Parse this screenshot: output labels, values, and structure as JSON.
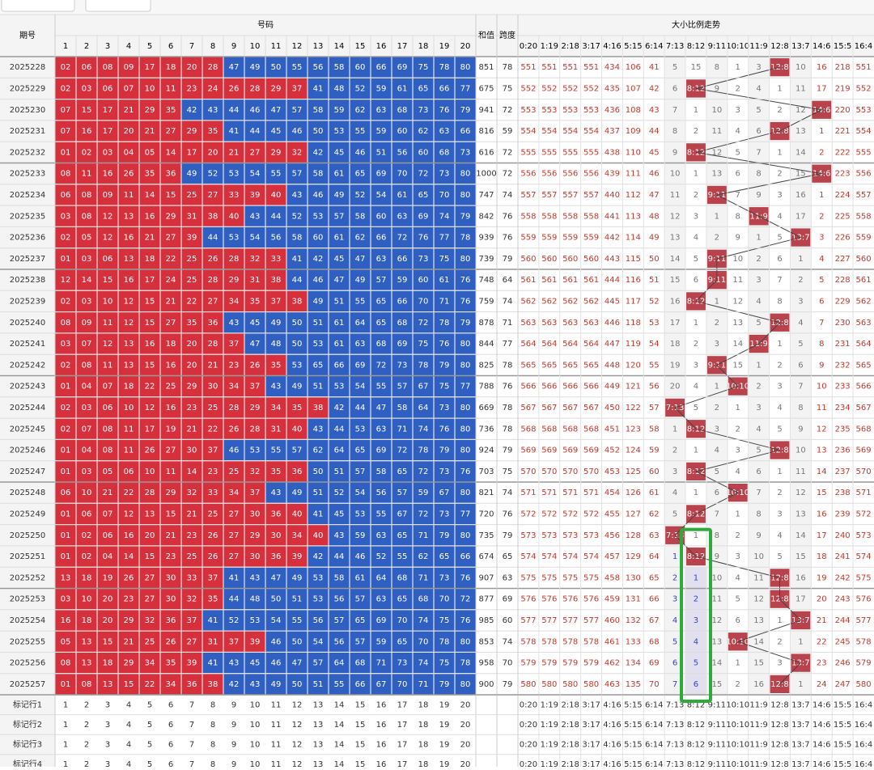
{
  "header": {
    "issue": "期号",
    "numbers_title": "号码",
    "sum": "和值",
    "span": "跨度",
    "trend_title": "大小比例走势",
    "numbers": [
      "1",
      "2",
      "3",
      "4",
      "5",
      "6",
      "7",
      "8",
      "9",
      "10",
      "11",
      "12",
      "13",
      "14",
      "15",
      "16",
      "17",
      "18",
      "19",
      "20"
    ],
    "ratios": [
      "0:20",
      "1:19",
      "2:18",
      "3:17",
      "4:16",
      "5:15",
      "6:14",
      "7:13",
      "8:12",
      "9:11",
      "10:10",
      "11:9",
      "12:8",
      "13:7",
      "14:6",
      "15:5",
      "16:4"
    ]
  },
  "rows": [
    {
      "issue": "2025228",
      "numbers": [
        "02",
        "06",
        "08",
        "09",
        "17",
        "18",
        "20",
        "28",
        "47",
        "49",
        "50",
        "55",
        "56",
        "58",
        "60",
        "66",
        "69",
        "75",
        "78",
        "80"
      ],
      "sum": 851,
      "span": 78,
      "trend": [
        551,
        551,
        551,
        551,
        434,
        106,
        41,
        5,
        15,
        8,
        1,
        3,
        "12:8",
        10,
        16,
        218,
        551
      ]
    },
    {
      "issue": "2025229",
      "numbers": [
        "02",
        "03",
        "06",
        "07",
        "10",
        "11",
        "23",
        "24",
        "26",
        "28",
        "29",
        "37",
        "41",
        "48",
        "52",
        "59",
        "61",
        "65",
        "66",
        "77"
      ],
      "sum": 675,
      "span": 75,
      "trend": [
        552,
        552,
        552,
        552,
        435,
        107,
        42,
        6,
        "8:12",
        9,
        2,
        4,
        1,
        11,
        17,
        219,
        552
      ]
    },
    {
      "issue": "2025230",
      "numbers": [
        "07",
        "15",
        "17",
        "21",
        "29",
        "35",
        "42",
        "43",
        "44",
        "46",
        "47",
        "57",
        "58",
        "59",
        "62",
        "63",
        "68",
        "73",
        "76",
        "79"
      ],
      "sum": 941,
      "span": 72,
      "trend": [
        553,
        553,
        553,
        553,
        436,
        108,
        43,
        7,
        1,
        10,
        3,
        5,
        2,
        12,
        "14:6",
        220,
        553
      ]
    },
    {
      "issue": "2025231",
      "numbers": [
        "07",
        "16",
        "17",
        "20",
        "21",
        "27",
        "29",
        "35",
        "41",
        "44",
        "45",
        "46",
        "50",
        "53",
        "55",
        "59",
        "60",
        "62",
        "63",
        "66"
      ],
      "sum": 816,
      "span": 59,
      "trend": [
        554,
        554,
        554,
        554,
        437,
        109,
        44,
        8,
        2,
        11,
        4,
        6,
        "12:8",
        13,
        1,
        221,
        554
      ]
    },
    {
      "issue": "2025232",
      "numbers": [
        "01",
        "02",
        "03",
        "04",
        "05",
        "14",
        "17",
        "20",
        "21",
        "27",
        "29",
        "32",
        "42",
        "45",
        "46",
        "51",
        "56",
        "60",
        "68",
        "73"
      ],
      "sum": 616,
      "span": 72,
      "trend": [
        555,
        555,
        555,
        555,
        438,
        110,
        45,
        9,
        "8:12",
        12,
        5,
        7,
        1,
        14,
        2,
        222,
        555
      ]
    },
    {
      "issue": "2025233",
      "numbers": [
        "08",
        "11",
        "16",
        "26",
        "35",
        "36",
        "49",
        "52",
        "53",
        "54",
        "55",
        "57",
        "58",
        "61",
        "65",
        "69",
        "70",
        "72",
        "73",
        "80"
      ],
      "sum": 1000,
      "span": 72,
      "trend": [
        556,
        556,
        556,
        556,
        439,
        111,
        46,
        10,
        1,
        13,
        6,
        8,
        2,
        15,
        "14:6",
        223,
        556
      ]
    },
    {
      "issue": "2025234",
      "numbers": [
        "06",
        "08",
        "09",
        "11",
        "14",
        "15",
        "25",
        "27",
        "33",
        "39",
        "40",
        "43",
        "46",
        "49",
        "52",
        "54",
        "61",
        "65",
        "70",
        "80"
      ],
      "sum": 747,
      "span": 74,
      "trend": [
        557,
        557,
        557,
        557,
        440,
        112,
        47,
        11,
        2,
        "9:11",
        7,
        9,
        3,
        16,
        1,
        224,
        557
      ]
    },
    {
      "issue": "2025235",
      "numbers": [
        "03",
        "08",
        "12",
        "13",
        "16",
        "29",
        "31",
        "38",
        "40",
        "43",
        "44",
        "52",
        "53",
        "57",
        "58",
        "60",
        "63",
        "69",
        "74",
        "79"
      ],
      "sum": 842,
      "span": 76,
      "trend": [
        558,
        558,
        558,
        558,
        441,
        113,
        48,
        12,
        3,
        1,
        8,
        "11:9",
        4,
        17,
        2,
        225,
        558
      ]
    },
    {
      "issue": "2025236",
      "numbers": [
        "02",
        "05",
        "12",
        "16",
        "21",
        "27",
        "39",
        "44",
        "53",
        "54",
        "56",
        "58",
        "60",
        "61",
        "62",
        "66",
        "72",
        "76",
        "77",
        "78"
      ],
      "sum": 939,
      "span": 76,
      "trend": [
        559,
        559,
        559,
        559,
        442,
        114,
        49,
        13,
        4,
        2,
        9,
        1,
        5,
        "13:7",
        3,
        226,
        559
      ]
    },
    {
      "issue": "2025237",
      "numbers": [
        "01",
        "03",
        "06",
        "13",
        "18",
        "22",
        "25",
        "26",
        "28",
        "32",
        "33",
        "41",
        "42",
        "45",
        "47",
        "63",
        "66",
        "73",
        "75",
        "80"
      ],
      "sum": 739,
      "span": 79,
      "trend": [
        560,
        560,
        560,
        560,
        443,
        115,
        50,
        14,
        5,
        "9:11",
        10,
        2,
        6,
        1,
        4,
        227,
        560
      ]
    },
    {
      "issue": "2025238",
      "numbers": [
        "12",
        "14",
        "15",
        "16",
        "17",
        "24",
        "25",
        "28",
        "29",
        "31",
        "38",
        "44",
        "46",
        "47",
        "49",
        "57",
        "59",
        "60",
        "61",
        "76"
      ],
      "sum": 748,
      "span": 64,
      "trend": [
        561,
        561,
        561,
        561,
        444,
        116,
        51,
        15,
        6,
        "9:11",
        11,
        3,
        7,
        2,
        5,
        228,
        561
      ]
    },
    {
      "issue": "2025239",
      "numbers": [
        "02",
        "03",
        "10",
        "12",
        "15",
        "21",
        "22",
        "27",
        "34",
        "35",
        "37",
        "38",
        "49",
        "51",
        "55",
        "65",
        "66",
        "70",
        "71",
        "76"
      ],
      "sum": 759,
      "span": 74,
      "trend": [
        562,
        562,
        562,
        562,
        445,
        117,
        52,
        16,
        "8:12",
        1,
        12,
        4,
        8,
        3,
        6,
        229,
        562
      ]
    },
    {
      "issue": "2025240",
      "numbers": [
        "08",
        "09",
        "11",
        "12",
        "15",
        "27",
        "35",
        "36",
        "43",
        "45",
        "49",
        "50",
        "51",
        "61",
        "64",
        "65",
        "68",
        "72",
        "78",
        "79"
      ],
      "sum": 878,
      "span": 71,
      "trend": [
        563,
        563,
        563,
        563,
        446,
        118,
        53,
        17,
        1,
        2,
        13,
        5,
        "12:8",
        4,
        7,
        230,
        563
      ]
    },
    {
      "issue": "2025241",
      "numbers": [
        "03",
        "07",
        "12",
        "13",
        "16",
        "18",
        "20",
        "28",
        "37",
        "47",
        "48",
        "50",
        "53",
        "61",
        "63",
        "68",
        "69",
        "75",
        "76",
        "80"
      ],
      "sum": 844,
      "span": 77,
      "trend": [
        564,
        564,
        564,
        564,
        447,
        119,
        54,
        18,
        2,
        3,
        14,
        "11:9",
        1,
        5,
        8,
        231,
        564
      ]
    },
    {
      "issue": "2025242",
      "numbers": [
        "02",
        "08",
        "11",
        "13",
        "15",
        "16",
        "20",
        "21",
        "23",
        "26",
        "35",
        "53",
        "65",
        "66",
        "69",
        "72",
        "73",
        "78",
        "79",
        "80"
      ],
      "sum": 825,
      "span": 78,
      "trend": [
        565,
        565,
        565,
        565,
        448,
        120,
        55,
        19,
        3,
        "9:11",
        15,
        1,
        2,
        6,
        9,
        232,
        565
      ]
    },
    {
      "issue": "2025243",
      "numbers": [
        "01",
        "04",
        "07",
        "18",
        "22",
        "25",
        "29",
        "30",
        "34",
        "37",
        "43",
        "49",
        "51",
        "53",
        "54",
        "55",
        "57",
        "67",
        "75",
        "77"
      ],
      "sum": 788,
      "span": 76,
      "trend": [
        566,
        566,
        566,
        566,
        449,
        121,
        56,
        20,
        4,
        1,
        "10:10",
        2,
        3,
        7,
        10,
        233,
        566
      ]
    },
    {
      "issue": "2025244",
      "numbers": [
        "02",
        "03",
        "06",
        "10",
        "12",
        "16",
        "23",
        "25",
        "28",
        "29",
        "34",
        "35",
        "38",
        "42",
        "44",
        "47",
        "58",
        "64",
        "73",
        "80"
      ],
      "sum": 669,
      "span": 78,
      "trend": [
        567,
        567,
        567,
        567,
        450,
        122,
        57,
        "7:13",
        5,
        2,
        1,
        3,
        4,
        8,
        11,
        234,
        567
      ]
    },
    {
      "issue": "2025245",
      "numbers": [
        "02",
        "07",
        "08",
        "11",
        "17",
        "19",
        "21",
        "22",
        "26",
        "28",
        "31",
        "40",
        "43",
        "44",
        "53",
        "63",
        "71",
        "74",
        "76",
        "80"
      ],
      "sum": 736,
      "span": 78,
      "trend": [
        568,
        568,
        568,
        568,
        451,
        123,
        58,
        1,
        "8:12",
        3,
        2,
        4,
        5,
        9,
        12,
        235,
        568
      ]
    },
    {
      "issue": "2025246",
      "numbers": [
        "01",
        "04",
        "08",
        "11",
        "26",
        "27",
        "30",
        "37",
        "46",
        "53",
        "55",
        "57",
        "62",
        "64",
        "65",
        "69",
        "72",
        "78",
        "79",
        "80"
      ],
      "sum": 924,
      "span": 79,
      "trend": [
        569,
        569,
        569,
        569,
        452,
        124,
        59,
        2,
        1,
        4,
        3,
        5,
        "12:8",
        10,
        13,
        236,
        569
      ]
    },
    {
      "issue": "2025247",
      "numbers": [
        "01",
        "03",
        "05",
        "06",
        "10",
        "11",
        "14",
        "23",
        "25",
        "32",
        "35",
        "36",
        "50",
        "51",
        "57",
        "58",
        "65",
        "72",
        "73",
        "76"
      ],
      "sum": 703,
      "span": 75,
      "trend": [
        570,
        570,
        570,
        570,
        453,
        125,
        60,
        3,
        "8:12",
        5,
        4,
        6,
        1,
        11,
        14,
        237,
        570
      ]
    },
    {
      "issue": "2025248",
      "numbers": [
        "06",
        "10",
        "21",
        "22",
        "28",
        "29",
        "32",
        "33",
        "34",
        "37",
        "43",
        "49",
        "51",
        "52",
        "54",
        "56",
        "57",
        "59",
        "67",
        "80"
      ],
      "sum": 821,
      "span": 74,
      "trend": [
        571,
        571,
        571,
        571,
        454,
        126,
        61,
        4,
        1,
        6,
        "10:10",
        7,
        2,
        12,
        15,
        238,
        571
      ]
    },
    {
      "issue": "2025249",
      "numbers": [
        "01",
        "06",
        "07",
        "12",
        "13",
        "15",
        "21",
        "25",
        "27",
        "30",
        "36",
        "40",
        "41",
        "45",
        "53",
        "55",
        "67",
        "72",
        "73",
        "77"
      ],
      "sum": 720,
      "span": 76,
      "trend": [
        572,
        572,
        572,
        572,
        455,
        127,
        62,
        5,
        "8:12",
        7,
        1,
        8,
        3,
        13,
        16,
        239,
        572
      ]
    },
    {
      "issue": "2025250",
      "numbers": [
        "01",
        "02",
        "06",
        "16",
        "20",
        "21",
        "23",
        "26",
        "27",
        "29",
        "30",
        "34",
        "40",
        "43",
        "59",
        "63",
        "65",
        "71",
        "79",
        "80"
      ],
      "sum": 735,
      "span": 79,
      "trend": [
        573,
        573,
        573,
        573,
        456,
        128,
        63,
        "7:13",
        1,
        8,
        2,
        9,
        4,
        14,
        17,
        240,
        573
      ]
    },
    {
      "issue": "2025251",
      "numbers": [
        "01",
        "02",
        "04",
        "14",
        "15",
        "23",
        "25",
        "26",
        "27",
        "30",
        "36",
        "39",
        "42",
        "44",
        "46",
        "52",
        "55",
        "62",
        "65",
        "66"
      ],
      "sum": 674,
      "span": 65,
      "trend": [
        574,
        574,
        574,
        574,
        457,
        129,
        64,
        1,
        "8:12",
        9,
        3,
        10,
        5,
        15,
        18,
        241,
        574
      ]
    },
    {
      "issue": "2025252",
      "numbers": [
        "13",
        "18",
        "19",
        "26",
        "27",
        "30",
        "33",
        "37",
        "41",
        "43",
        "47",
        "49",
        "53",
        "58",
        "61",
        "64",
        "68",
        "71",
        "73",
        "76"
      ],
      "sum": 907,
      "span": 63,
      "trend": [
        575,
        575,
        575,
        575,
        458,
        130,
        65,
        2,
        1,
        10,
        4,
        11,
        "12:8",
        16,
        19,
        242,
        575
      ]
    },
    {
      "issue": "2025253",
      "numbers": [
        "03",
        "10",
        "20",
        "23",
        "27",
        "30",
        "32",
        "35",
        "44",
        "48",
        "50",
        "51",
        "53",
        "56",
        "57",
        "63",
        "65",
        "68",
        "70",
        "72"
      ],
      "sum": 877,
      "span": 69,
      "trend": [
        576,
        576,
        576,
        576,
        459,
        131,
        66,
        3,
        2,
        11,
        5,
        12,
        "12:8",
        17,
        20,
        243,
        576
      ]
    },
    {
      "issue": "2025254",
      "numbers": [
        "16",
        "18",
        "20",
        "29",
        "32",
        "36",
        "37",
        "41",
        "52",
        "53",
        "54",
        "55",
        "56",
        "57",
        "65",
        "69",
        "70",
        "74",
        "75",
        "76"
      ],
      "sum": 985,
      "span": 60,
      "trend": [
        577,
        577,
        577,
        577,
        460,
        132,
        67,
        4,
        3,
        12,
        6,
        13,
        1,
        "13:7",
        21,
        244,
        577
      ]
    },
    {
      "issue": "2025255",
      "numbers": [
        "05",
        "13",
        "15",
        "21",
        "25",
        "26",
        "27",
        "31",
        "37",
        "39",
        "46",
        "50",
        "54",
        "56",
        "57",
        "59",
        "65",
        "70",
        "78",
        "80"
      ],
      "sum": 853,
      "span": 74,
      "trend": [
        578,
        578,
        578,
        578,
        461,
        133,
        68,
        5,
        4,
        13,
        "10:10",
        14,
        2,
        1,
        22,
        245,
        578
      ]
    },
    {
      "issue": "2025256",
      "numbers": [
        "08",
        "13",
        "18",
        "29",
        "34",
        "35",
        "39",
        "41",
        "43",
        "45",
        "46",
        "47",
        "57",
        "64",
        "68",
        "71",
        "73",
        "74",
        "75",
        "78"
      ],
      "sum": 958,
      "span": 70,
      "trend": [
        579,
        579,
        579,
        579,
        462,
        134,
        69,
        6,
        5,
        14,
        1,
        15,
        3,
        "13:7",
        23,
        246,
        579
      ]
    },
    {
      "issue": "2025257",
      "numbers": [
        "01",
        "08",
        "13",
        "15",
        "22",
        "34",
        "36",
        "38",
        "42",
        "43",
        "49",
        "50",
        "51",
        "55",
        "66",
        "67",
        "70",
        "71",
        "79",
        "80"
      ],
      "sum": 900,
      "span": 79,
      "trend": [
        580,
        580,
        580,
        580,
        463,
        135,
        70,
        7,
        6,
        15,
        2,
        16,
        "12:8",
        1,
        24,
        247,
        580
      ]
    }
  ],
  "footer": [
    "标记行1",
    "标记行2",
    "标记行3",
    "标记行4"
  ]
}
